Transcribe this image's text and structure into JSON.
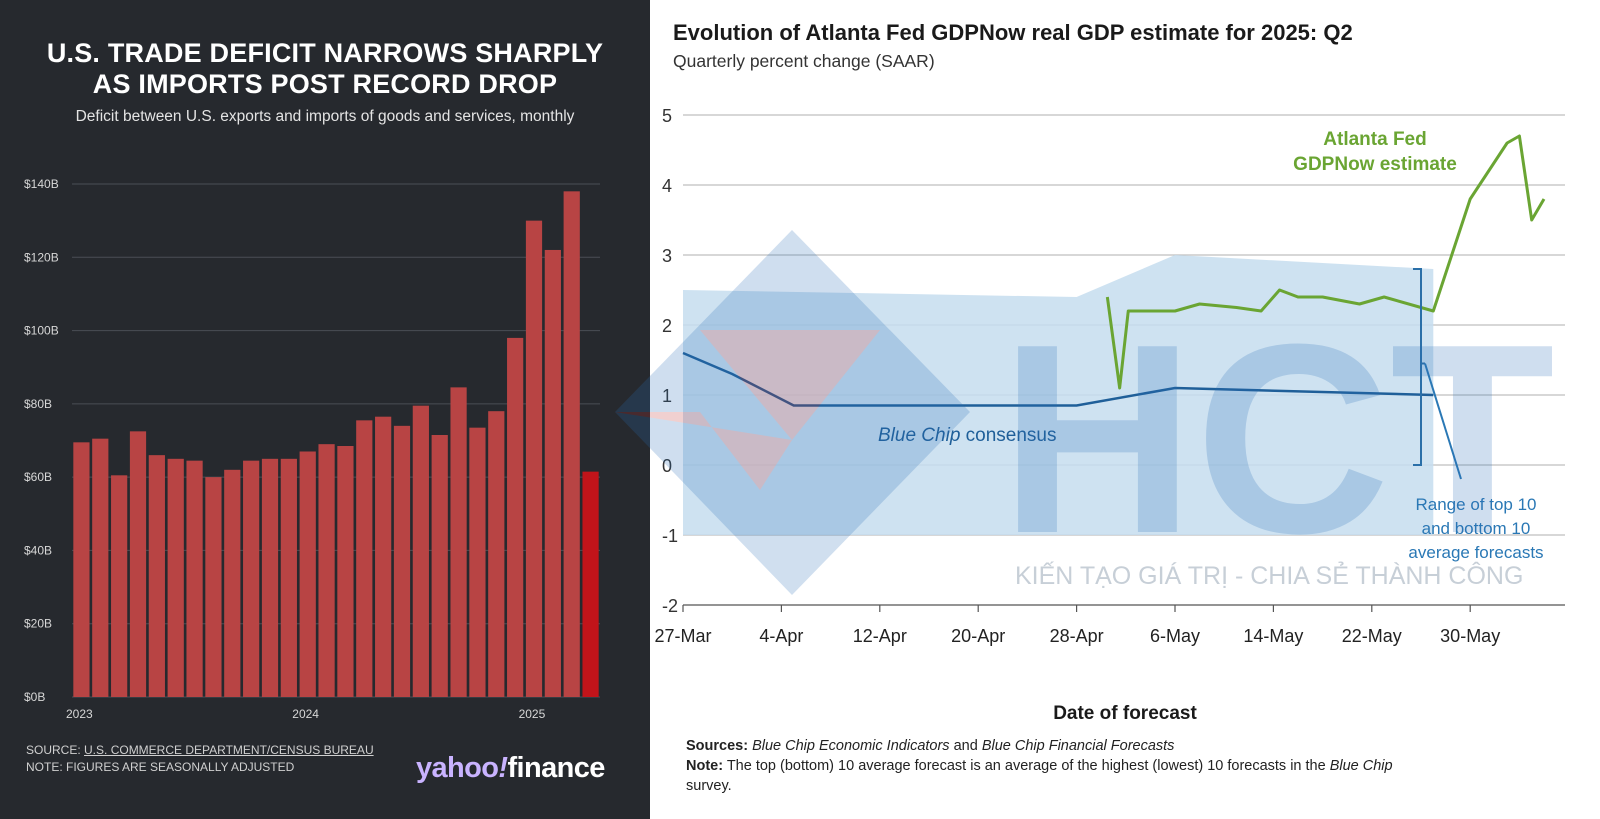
{
  "left_panel": {
    "title_line1": "U.S. TRADE DEFICIT NARROWS SHARPLY",
    "title_line2": "AS IMPORTS POST RECORD DROP",
    "subtitle": "Deficit between U.S. exports and imports of goods and services, monthly",
    "source_prefix": "SOURCE: ",
    "source_link": "U.S. COMMERCE DEPARTMENT/CENSUS BUREAU",
    "note": "NOTE: FIGURES ARE SEASONALLY ADJUSTED",
    "logo_part1": "yahoo",
    "logo_bang": "!",
    "logo_part2": "finance"
  },
  "right_panel": {
    "title": "Evolution of Atlanta Fed GDPNow real GDP estimate for 2025: Q2",
    "subtitle": "Quarterly percent change (SAAR)",
    "sources_label": "Sources:",
    "sources_text1": "Blue Chip Economic Indicators",
    "sources_and": " and ",
    "sources_text2": "Blue Chip Financial Forecasts",
    "note_label": "Note:",
    "note_text1": " The top (bottom) 10 average forecast is an average of the highest (lowest) 10 forecasts in the ",
    "note_italic": "Blue Chip",
    "note_text2": "survey."
  },
  "watermark": {
    "logo_text": "HCT",
    "tagline": "KIẾN TẠO GIÁ TRỊ - CHIA SẺ THÀNH CÔNG"
  },
  "chart_data": [
    {
      "type": "bar",
      "title": "U.S. TRADE DEFICIT NARROWS SHARPLY AS IMPORTS POST RECORD DROP",
      "subtitle": "Deficit between U.S. exports and imports of goods and services, monthly",
      "xlabel": "",
      "ylabel": "",
      "x_tick_labels": [
        "2023",
        "2024",
        "2025"
      ],
      "x_tick_index": [
        0,
        12,
        24
      ],
      "y_tick_labels": [
        "$0B",
        "$20B",
        "$40B",
        "$60B",
        "$80B",
        "$100B",
        "$120B",
        "$140B"
      ],
      "y_ticks": [
        0,
        20,
        40,
        60,
        80,
        100,
        120,
        140
      ],
      "ylim": [
        0,
        140
      ],
      "grid": true,
      "bar_color": "#b84444",
      "highlight_color": "#c1141a",
      "highlight_index": 27,
      "values": [
        69.5,
        70.5,
        60.5,
        72.5,
        66,
        65,
        64.5,
        60,
        62,
        64.5,
        65,
        65,
        67,
        69,
        68.5,
        75.5,
        76.5,
        74,
        79.5,
        71.5,
        84.5,
        73.5,
        78,
        98,
        130,
        122,
        138,
        61.5
      ]
    },
    {
      "type": "line",
      "title": "Evolution of Atlanta Fed GDPNow real GDP estimate for 2025: Q2",
      "subtitle": "Quarterly percent change (SAAR)",
      "xlabel": "Date of forecast",
      "ylabel": "",
      "x_unit": "days after 27-Mar",
      "x_tick_labels": [
        "27-Mar",
        "4-Apr",
        "12-Apr",
        "20-Apr",
        "28-Apr",
        "6-May",
        "14-May",
        "22-May",
        "30-May"
      ],
      "x_ticks": [
        0,
        8,
        16,
        24,
        32,
        40,
        48,
        56,
        64
      ],
      "xlim": [
        0,
        70
      ],
      "y_tick_labels": [
        "-2",
        "-1",
        "0",
        "1",
        "2",
        "3",
        "4",
        "5"
      ],
      "y_ticks": [
        -2,
        -1,
        0,
        1,
        2,
        3,
        4,
        5
      ],
      "ylim": [
        -2,
        5
      ],
      "grid": true,
      "annotations": {
        "gdpnow_label_line1": "Atlanta Fed",
        "gdpnow_label_line2": "GDPNow estimate",
        "bluechip_label_italic": "Blue Chip",
        "bluechip_label_rest": " consensus",
        "range_label_line1": "Range of top 10",
        "range_label_line2": "and bottom 10",
        "range_label_line3": "average forecasts"
      },
      "colors": {
        "gdpnow": "#6aa533",
        "bluechip": "#1f5f99",
        "band": "#c6ddef",
        "range_text": "#2a78b5"
      },
      "series": [
        {
          "key": "gdpnow",
          "x": [
            34.5,
            35.5,
            36.2,
            37,
            40,
            42,
            45,
            47,
            48.5,
            50,
            52,
            55,
            57,
            61,
            64,
            67,
            68,
            69,
            70
          ],
          "values": [
            2.4,
            1.1,
            2.2,
            2.2,
            2.2,
            2.3,
            2.25,
            2.2,
            2.5,
            2.4,
            2.4,
            2.3,
            2.4,
            2.2,
            3.8,
            4.6,
            4.7,
            3.5,
            3.8
          ]
        },
        {
          "key": "bluechip",
          "x": [
            0,
            4,
            9,
            32,
            40,
            61
          ],
          "values": [
            1.6,
            1.3,
            0.85,
            0.85,
            1.1,
            1.0
          ]
        },
        {
          "key": "band",
          "x": [
            0,
            32,
            40,
            61
          ],
          "upper": [
            2.5,
            2.4,
            3.0,
            2.8
          ],
          "lower": [
            -1.0,
            -1.0,
            -1.0,
            -1.0
          ]
        }
      ]
    }
  ]
}
